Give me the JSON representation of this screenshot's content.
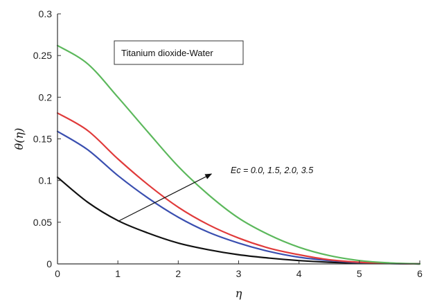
{
  "chart_data": {
    "type": "line",
    "title": "",
    "xlabel": "η",
    "ylabel": "θ(η)",
    "xlim": [
      0,
      6
    ],
    "ylim": [
      0,
      0.3
    ],
    "xticks": [
      "0",
      "1",
      "2",
      "3",
      "4",
      "5",
      "6"
    ],
    "yticks": [
      "0",
      "0.05",
      "0.1",
      "0.15",
      "0.2",
      "0.25",
      "0.3"
    ],
    "grid": false,
    "legend_box": "Titanium dioxide-Water",
    "annotation": "Ec = 0.0, 1.5, 2.0, 3.5",
    "annotation_arrow": {
      "from": [
        1.0,
        0.051
      ],
      "to": [
        2.55,
        0.108
      ]
    },
    "x": [
      0,
      0.5,
      1.0,
      1.5,
      2.0,
      2.5,
      3.0,
      3.5,
      4.0,
      4.5,
      5.0,
      5.5,
      6.0
    ],
    "series": [
      {
        "name": "",
        "color": "#111111",
        "values": [
          0.104,
          0.074,
          0.052,
          0.037,
          0.025,
          0.017,
          0.011,
          0.007,
          0.004,
          0.002,
          0.001,
          0.0005,
          0
        ]
      },
      {
        "name": "",
        "color": "#3a4fb0",
        "values": [
          0.159,
          0.137,
          0.106,
          0.079,
          0.056,
          0.038,
          0.025,
          0.015,
          0.008,
          0.004,
          0.0015,
          0.0005,
          0
        ]
      },
      {
        "name": "",
        "color": "#e03a3a",
        "values": [
          0.181,
          0.16,
          0.126,
          0.095,
          0.068,
          0.047,
          0.031,
          0.019,
          0.011,
          0.005,
          0.002,
          0.0007,
          0
        ]
      },
      {
        "name": "",
        "color": "#5cb85c",
        "values": [
          0.262,
          0.24,
          0.2,
          0.158,
          0.117,
          0.083,
          0.055,
          0.035,
          0.02,
          0.01,
          0.004,
          0.0012,
          0
        ]
      }
    ]
  }
}
